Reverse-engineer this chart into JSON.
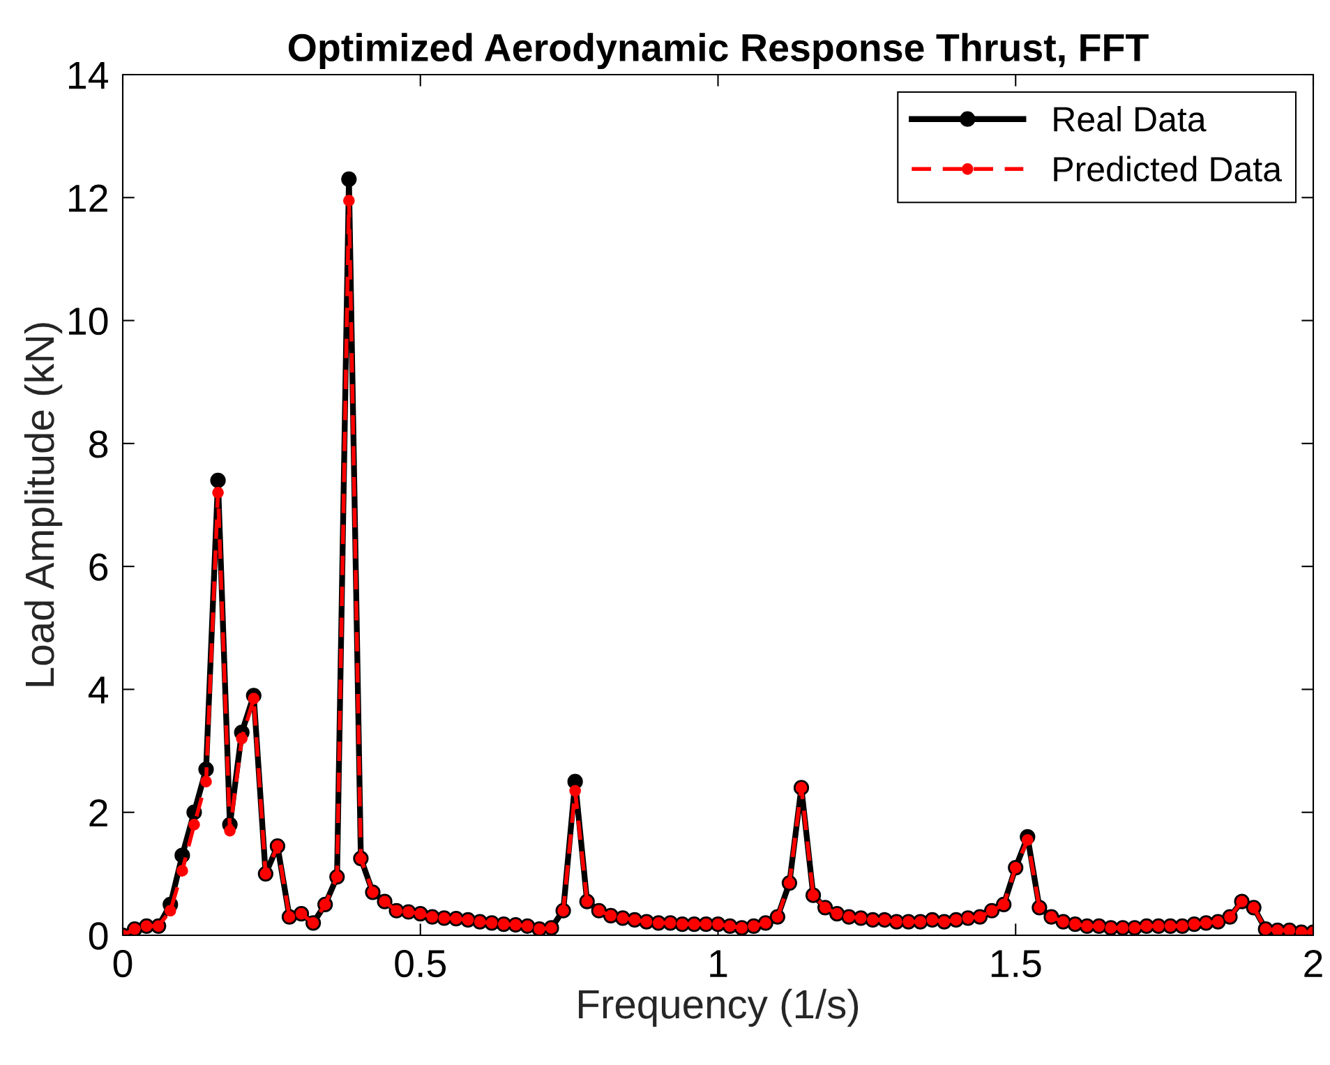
{
  "chart_data": {
    "type": "line",
    "title": "Optimized Aerodynamic Response Thrust, FFT",
    "xlabel": "Frequency (1/s)",
    "ylabel": "Load Amplitude (kN)",
    "x": [
      0,
      0.02,
      0.04,
      0.06,
      0.08,
      0.1,
      0.12,
      0.14,
      0.16,
      0.18,
      0.2,
      0.22,
      0.24,
      0.26,
      0.28,
      0.3,
      0.32,
      0.34,
      0.36,
      0.38,
      0.4,
      0.42,
      0.44,
      0.46,
      0.48,
      0.5,
      0.52,
      0.54,
      0.56,
      0.58,
      0.6,
      0.62,
      0.64,
      0.66,
      0.68,
      0.7,
      0.72,
      0.74,
      0.76,
      0.78,
      0.8,
      0.82,
      0.84,
      0.86,
      0.88,
      0.9,
      0.92,
      0.94,
      0.96,
      0.98,
      1,
      1.02,
      1.04,
      1.06,
      1.08,
      1.1,
      1.12,
      1.14,
      1.16,
      1.18,
      1.2,
      1.22,
      1.24,
      1.26,
      1.28,
      1.3,
      1.32,
      1.34,
      1.36,
      1.38,
      1.4,
      1.42,
      1.44,
      1.46,
      1.48,
      1.5,
      1.52,
      1.54,
      1.56,
      1.58,
      1.6,
      1.62,
      1.64,
      1.66,
      1.68,
      1.7,
      1.72,
      1.74,
      1.76,
      1.78,
      1.8,
      1.82,
      1.84,
      1.86,
      1.88,
      1.9,
      1.92,
      1.94,
      1.96,
      1.98,
      2
    ],
    "series": [
      {
        "name": "Real Data",
        "color": "#000000",
        "line_style": "solid",
        "values": [
          0,
          0.1,
          0.15,
          0.15,
          0.5,
          1.3,
          2.0,
          2.7,
          7.4,
          1.8,
          3.3,
          3.9,
          1.0,
          1.45,
          0.3,
          0.35,
          0.2,
          0.5,
          0.95,
          12.3,
          1.25,
          0.7,
          0.55,
          0.4,
          0.38,
          0.35,
          0.3,
          0.28,
          0.27,
          0.25,
          0.22,
          0.2,
          0.18,
          0.17,
          0.15,
          0.1,
          0.12,
          0.4,
          2.5,
          0.55,
          0.4,
          0.32,
          0.28,
          0.25,
          0.22,
          0.2,
          0.2,
          0.18,
          0.18,
          0.18,
          0.18,
          0.15,
          0.12,
          0.15,
          0.2,
          0.3,
          0.85,
          2.4,
          0.65,
          0.45,
          0.35,
          0.3,
          0.28,
          0.25,
          0.25,
          0.22,
          0.22,
          0.22,
          0.25,
          0.22,
          0.25,
          0.28,
          0.3,
          0.4,
          0.5,
          1.1,
          1.6,
          0.45,
          0.3,
          0.22,
          0.18,
          0.15,
          0.15,
          0.12,
          0.12,
          0.12,
          0.15,
          0.15,
          0.15,
          0.15,
          0.18,
          0.2,
          0.22,
          0.3,
          0.55,
          0.45,
          0.1,
          0.08,
          0.08,
          0.05,
          0.05
        ]
      },
      {
        "name": "Predicted Data",
        "color": "#ff0000",
        "line_style": "dashed",
        "values": [
          0,
          0.1,
          0.15,
          0.15,
          0.4,
          1.05,
          1.8,
          2.5,
          7.2,
          1.7,
          3.2,
          3.85,
          1.0,
          1.45,
          0.3,
          0.35,
          0.2,
          0.5,
          0.95,
          11.95,
          1.25,
          0.7,
          0.55,
          0.4,
          0.38,
          0.35,
          0.3,
          0.28,
          0.27,
          0.25,
          0.22,
          0.2,
          0.18,
          0.17,
          0.15,
          0.1,
          0.12,
          0.4,
          2.35,
          0.55,
          0.4,
          0.32,
          0.28,
          0.25,
          0.22,
          0.2,
          0.2,
          0.18,
          0.18,
          0.18,
          0.18,
          0.15,
          0.12,
          0.15,
          0.2,
          0.3,
          0.85,
          2.4,
          0.65,
          0.45,
          0.35,
          0.3,
          0.28,
          0.25,
          0.25,
          0.22,
          0.22,
          0.22,
          0.25,
          0.22,
          0.25,
          0.28,
          0.3,
          0.4,
          0.5,
          1.1,
          1.55,
          0.45,
          0.3,
          0.22,
          0.18,
          0.15,
          0.15,
          0.12,
          0.12,
          0.12,
          0.15,
          0.15,
          0.15,
          0.15,
          0.18,
          0.2,
          0.22,
          0.3,
          0.55,
          0.45,
          0.1,
          0.08,
          0.08,
          0.05,
          0.05
        ]
      }
    ],
    "marker": "circle",
    "xlim": [
      0,
      2
    ],
    "ylim": [
      0,
      14
    ],
    "xticks": [
      0,
      0.5,
      1,
      1.5,
      2
    ],
    "yticks": [
      0,
      2,
      4,
      6,
      8,
      10,
      12,
      14
    ],
    "grid": false,
    "legend": "top right"
  }
}
